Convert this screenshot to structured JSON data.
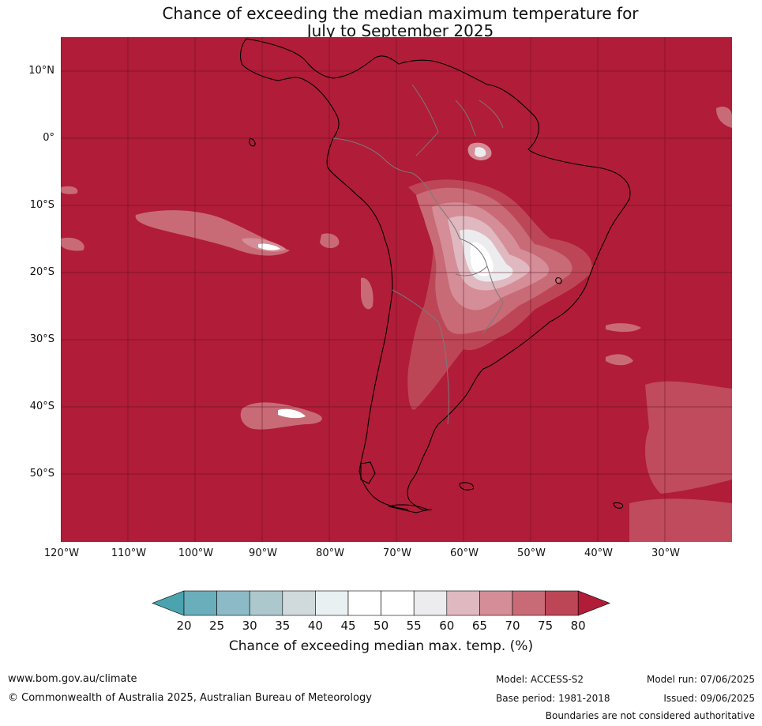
{
  "title": {
    "line1": "Chance of exceeding the median maximum temperature for",
    "line2": "July to September 2025"
  },
  "map": {
    "latitude_labels": [
      "10°N",
      "0°",
      "10°S",
      "20°S",
      "30°S",
      "40°S",
      "50°S"
    ],
    "longitude_labels": [
      "120°W",
      "110°W",
      "100°W",
      "90°W",
      "80°W",
      "70°W",
      "60°W",
      "50°W",
      "40°W",
      "30°W"
    ],
    "background_class_color": "#b11c38"
  },
  "colorbar": {
    "ticks": [
      "20",
      "25",
      "30",
      "35",
      "40",
      "45",
      "50",
      "55",
      "60",
      "65",
      "70",
      "75",
      "80"
    ],
    "colors": [
      "#4ba3b0",
      "#6aaebb",
      "#8cbac6",
      "#acc8cd",
      "#d0dadd",
      "#e9f0f2",
      "#ffffff",
      "#ffffff",
      "#ececee",
      "#e0b8bf",
      "#d58d97",
      "#c86b76",
      "#bd4656",
      "#b11c38"
    ],
    "label": "Chance of exceeding median max. temp. (%)"
  },
  "footer": {
    "website": "www.bom.gov.au/climate",
    "copyright": "© Commonwealth of Australia 2025, Australian Bureau of Meteorology",
    "model": "Model: ACCESS-S2",
    "base_period": "Base period: 1981-2018",
    "model_run": "Model run: 07/06/2025",
    "issued": "Issued: 09/06/2025",
    "disclaimer": "Boundaries are not considered authoritative"
  }
}
